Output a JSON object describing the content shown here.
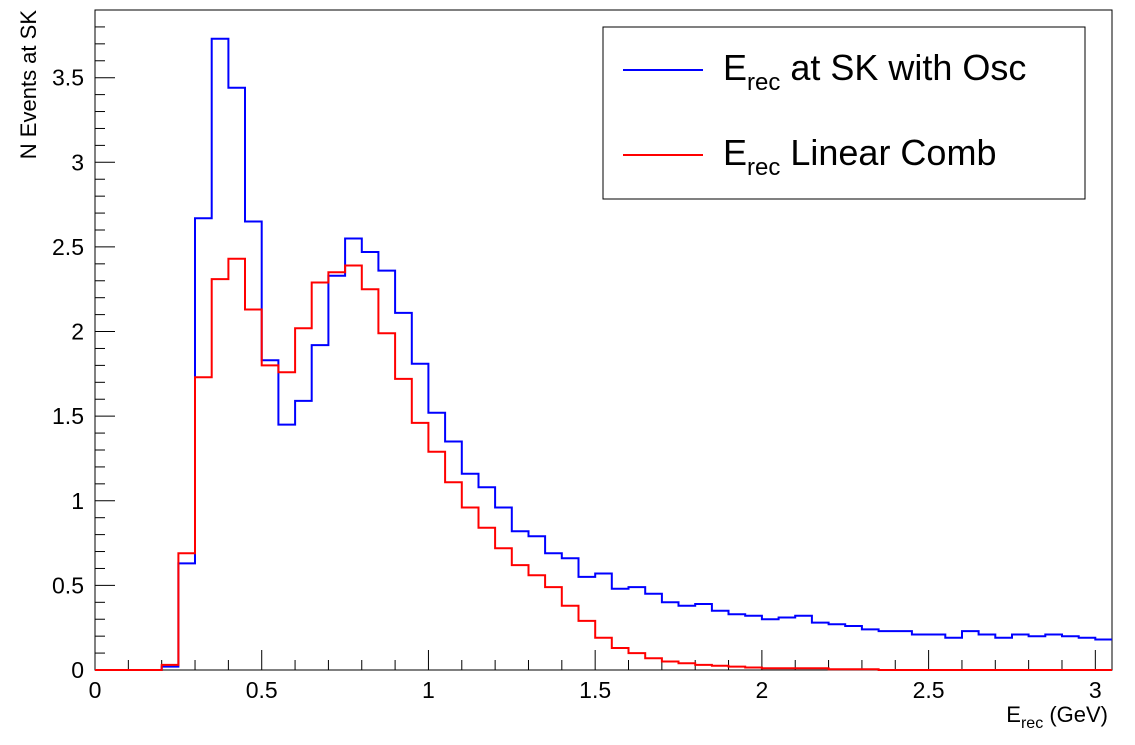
{
  "chart_data": {
    "type": "histogram-step",
    "xlabel": {
      "main": "E",
      "sub": "rec",
      "rest": " (GeV)"
    },
    "ylabel": "N Events at SK",
    "xlim": [
      0,
      3.05
    ],
    "ylim": [
      0,
      3.9
    ],
    "bin_width": 0.05,
    "x_ticks": [
      0,
      0.5,
      1,
      1.5,
      2,
      2.5,
      3
    ],
    "x_tick_labels": [
      "0",
      "0.5",
      "1",
      "1.5",
      "2",
      "2.5",
      "3"
    ],
    "y_ticks": [
      0,
      0.5,
      1,
      1.5,
      2,
      2.5,
      3,
      3.5
    ],
    "y_tick_labels": [
      "0",
      "0.5",
      "1",
      "1.5",
      "2",
      "2.5",
      "3",
      "3.5"
    ],
    "legend_position": "top-right",
    "series": [
      {
        "name": "osc",
        "legend": {
          "main": "E",
          "sub": "rec",
          "rest": " at SK with Osc"
        },
        "color": "#0000ff",
        "values": [
          0,
          0,
          0,
          0,
          0.02,
          0.63,
          2.67,
          3.73,
          3.44,
          2.65,
          1.83,
          1.45,
          1.59,
          1.92,
          2.33,
          2.55,
          2.47,
          2.36,
          2.11,
          1.81,
          1.52,
          1.35,
          1.16,
          1.08,
          0.96,
          0.82,
          0.79,
          0.69,
          0.66,
          0.55,
          0.57,
          0.48,
          0.49,
          0.45,
          0.4,
          0.38,
          0.39,
          0.35,
          0.33,
          0.32,
          0.3,
          0.31,
          0.32,
          0.28,
          0.27,
          0.26,
          0.24,
          0.23,
          0.23,
          0.21,
          0.21,
          0.19,
          0.23,
          0.21,
          0.19,
          0.21,
          0.2,
          0.21,
          0.2,
          0.19,
          0.18
        ]
      },
      {
        "name": "lincomb",
        "legend": {
          "main": "E",
          "sub": "rec",
          "rest": " Linear Comb"
        },
        "color": "#ff0000",
        "values": [
          0,
          0,
          0,
          0,
          0.03,
          0.69,
          1.73,
          2.31,
          2.43,
          2.13,
          1.8,
          1.76,
          2.02,
          2.29,
          2.35,
          2.39,
          2.25,
          1.99,
          1.72,
          1.46,
          1.29,
          1.11,
          0.96,
          0.84,
          0.72,
          0.62,
          0.56,
          0.49,
          0.38,
          0.29,
          0.19,
          0.13,
          0.1,
          0.07,
          0.05,
          0.04,
          0.03,
          0.025,
          0.02,
          0.015,
          0.01,
          0.01,
          0.01,
          0.01,
          0.005,
          0.005,
          0.005,
          0,
          0,
          0,
          0,
          0,
          0,
          0,
          0,
          0,
          0,
          0,
          0,
          0,
          0
        ]
      }
    ]
  }
}
